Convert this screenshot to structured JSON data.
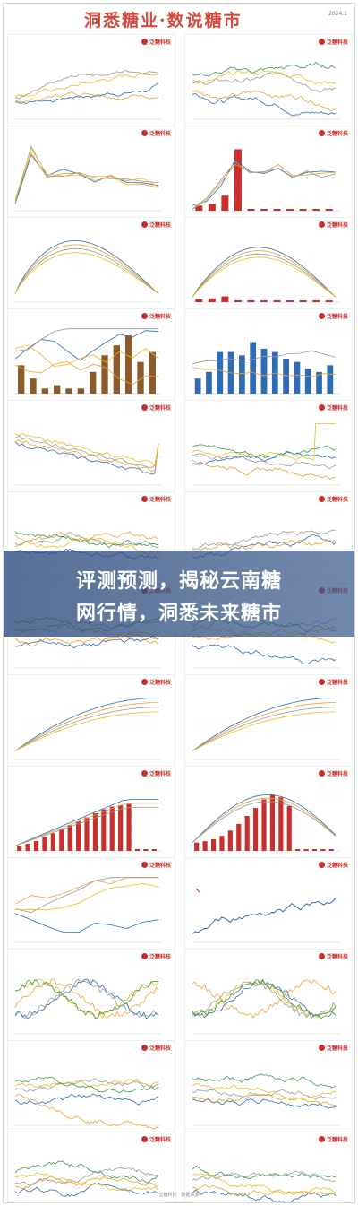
{
  "header": {
    "title": "洞悉糖业·数说糖市",
    "tag": "2024.1"
  },
  "brand": "泛糖科技",
  "banner": {
    "line1": "评测预测，揭秘云南糖",
    "line2": "网行情，洞悉未来糖市"
  },
  "colors": {
    "blue": "#2e6db4",
    "orange": "#f0a030",
    "gray": "#9a9a9a",
    "yellow": "#e8c020",
    "green": "#3a9a50",
    "red": "#c9302c",
    "brown": "#8b5a2b",
    "navy": "#1f3f73"
  },
  "footer": "泛糖科技 · 数据来源"
}
